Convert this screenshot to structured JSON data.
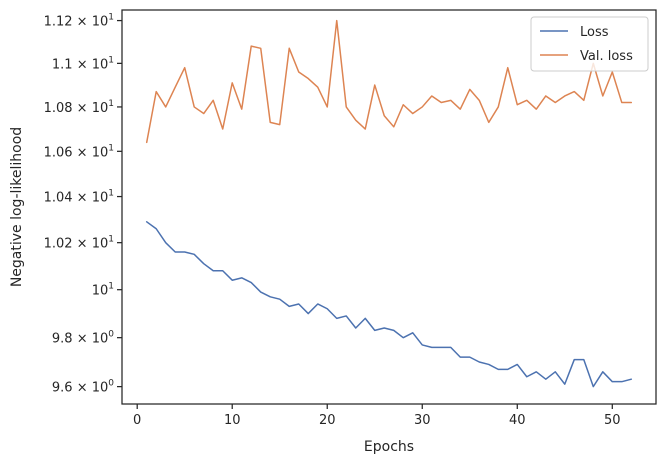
{
  "chart_data": {
    "type": "line",
    "title": "",
    "xlabel": "Epochs",
    "ylabel": "Negative log-likelihood",
    "yscale": "log",
    "xlim": [
      -1.6,
      54.6
    ],
    "ylim": [
      9.53,
      11.25
    ],
    "grid": false,
    "legend_position": "top-right",
    "x_ticks": [
      {
        "value": 0,
        "label": "0"
      },
      {
        "value": 10,
        "label": "10"
      },
      {
        "value": 20,
        "label": "20"
      },
      {
        "value": 30,
        "label": "30"
      },
      {
        "value": 40,
        "label": "40"
      },
      {
        "value": 50,
        "label": "50"
      }
    ],
    "y_ticks": [
      {
        "value": 9.6,
        "mantissa": "9.6",
        "exponent": "0"
      },
      {
        "value": 9.8,
        "mantissa": "9.8",
        "exponent": "0"
      },
      {
        "value": 10.0,
        "mantissa": "",
        "exponent": "1"
      },
      {
        "value": 10.2,
        "mantissa": "1.02",
        "exponent": "1"
      },
      {
        "value": 10.4,
        "mantissa": "1.04",
        "exponent": "1"
      },
      {
        "value": 10.6,
        "mantissa": "1.06",
        "exponent": "1"
      },
      {
        "value": 10.8,
        "mantissa": "1.08",
        "exponent": "1"
      },
      {
        "value": 11.0,
        "mantissa": "1.1",
        "exponent": "1"
      },
      {
        "value": 11.2,
        "mantissa": "1.12",
        "exponent": "1"
      }
    ],
    "times_symbol": "×",
    "tick_base": "10",
    "x": [
      1,
      2,
      3,
      4,
      5,
      6,
      7,
      8,
      9,
      10,
      11,
      12,
      13,
      14,
      15,
      16,
      17,
      18,
      19,
      20,
      21,
      22,
      23,
      24,
      25,
      26,
      27,
      28,
      29,
      30,
      31,
      32,
      33,
      34,
      35,
      36,
      37,
      38,
      39,
      40,
      41,
      42,
      43,
      44,
      45,
      46,
      47,
      48,
      49,
      50,
      51,
      52
    ],
    "series": [
      {
        "name": "Loss",
        "color": "#4c72b0",
        "values": [
          10.29,
          10.26,
          10.2,
          10.16,
          10.16,
          10.15,
          10.11,
          10.08,
          10.08,
          10.04,
          10.05,
          10.03,
          9.99,
          9.97,
          9.96,
          9.93,
          9.94,
          9.9,
          9.94,
          9.92,
          9.88,
          9.89,
          9.84,
          9.88,
          9.83,
          9.84,
          9.83,
          9.8,
          9.82,
          9.77,
          9.76,
          9.76,
          9.76,
          9.72,
          9.72,
          9.7,
          9.69,
          9.67,
          9.67,
          9.69,
          9.64,
          9.66,
          9.63,
          9.66,
          9.61,
          9.71,
          9.71,
          9.6,
          9.66,
          9.62,
          9.62,
          9.63
        ]
      },
      {
        "name": "Val. loss",
        "color": "#dd8452",
        "values": [
          10.64,
          10.87,
          10.8,
          10.89,
          10.98,
          10.8,
          10.77,
          10.83,
          10.7,
          10.91,
          10.79,
          11.08,
          11.07,
          10.73,
          10.72,
          11.07,
          10.96,
          10.93,
          10.89,
          10.8,
          11.2,
          10.8,
          10.74,
          10.7,
          10.9,
          10.76,
          10.71,
          10.81,
          10.77,
          10.8,
          10.85,
          10.82,
          10.83,
          10.79,
          10.88,
          10.83,
          10.73,
          10.8,
          10.98,
          10.81,
          10.83,
          10.79,
          10.85,
          10.82,
          10.85,
          10.87,
          10.83,
          11.0,
          10.85,
          10.96,
          10.82,
          10.82
        ]
      }
    ]
  }
}
